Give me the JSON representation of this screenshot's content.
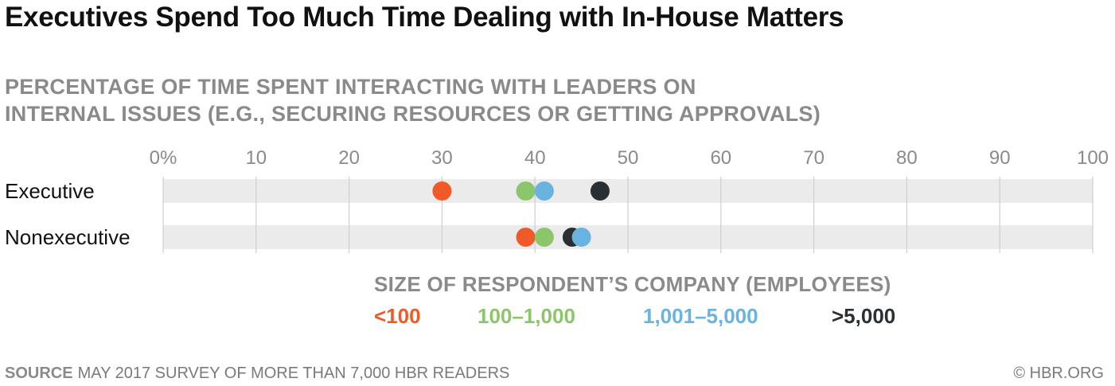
{
  "title": "Executives Spend Too Much Time Dealing with In-House Matters",
  "subtitle_lines": [
    "PERCENTAGE OF TIME SPENT INTERACTING WITH LEADERS ON",
    "INTERNAL ISSUES (E.G., SECURING RESOURCES OR GETTING APPROVALS)"
  ],
  "chart_data": {
    "type": "scatter",
    "title": "Executives Spend Too Much Time Dealing with In-House Matters",
    "xlim": [
      0,
      100
    ],
    "x_ticks": [
      0,
      10,
      20,
      30,
      40,
      50,
      60,
      70,
      80,
      90,
      100
    ],
    "x_tick_labels": [
      "0%",
      "10",
      "20",
      "30",
      "40",
      "50",
      "60",
      "70",
      "80",
      "90",
      "100"
    ],
    "grid": true,
    "categories": [
      "Executive",
      "Nonexecutive"
    ],
    "legend_title": "SIZE OF RESPONDENT’S COMPANY (EMPLOYEES)",
    "legend_position": "bottom",
    "series": [
      {
        "name": "<100",
        "color": "#f05a28",
        "values": [
          30,
          39
        ]
      },
      {
        "name": "100–1,000",
        "color": "#8cc56a",
        "values": [
          39,
          41
        ]
      },
      {
        "name": "1,001–5,000",
        "color": "#69b3e0",
        "values": [
          41,
          45
        ]
      },
      {
        "name": ">5,000",
        "color": "#2a2f33",
        "values": [
          47,
          44
        ]
      }
    ]
  },
  "source_label": "SOURCE",
  "source_text": "MAY 2017 SURVEY OF MORE THAN 7,000 HBR READERS",
  "credit": "© HBR.ORG"
}
